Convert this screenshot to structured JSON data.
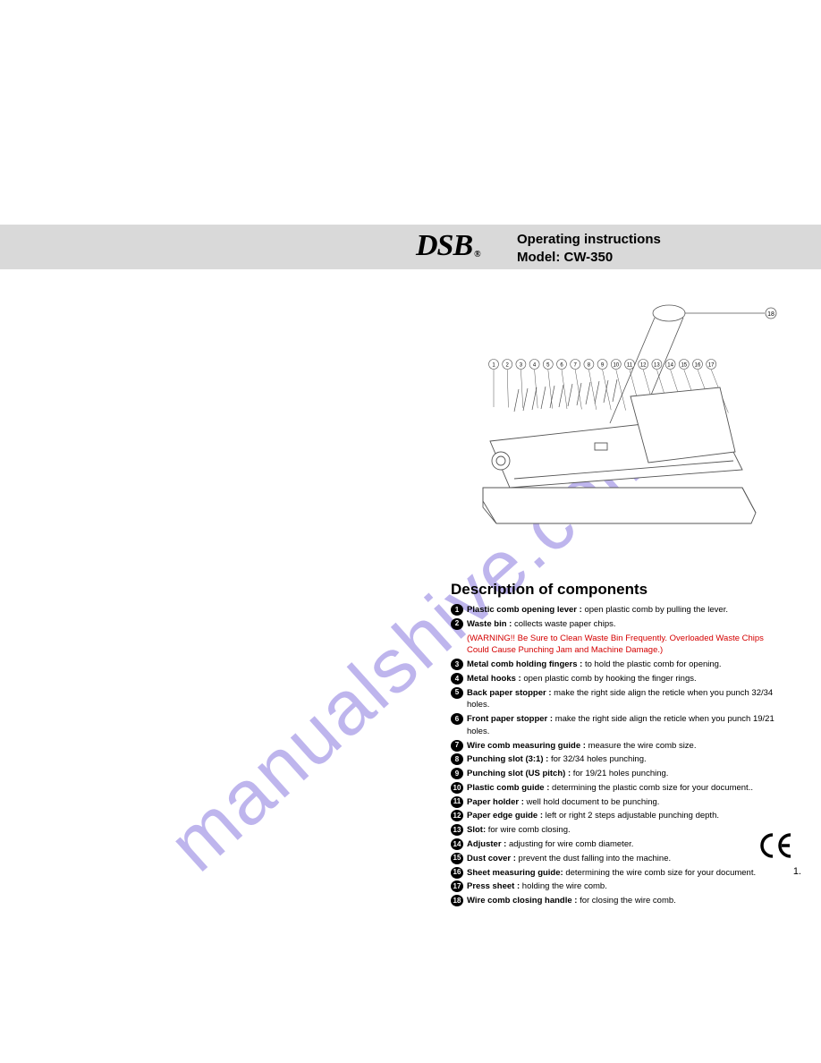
{
  "header": {
    "logo_text": "DSB",
    "line1": "Operating instructions",
    "line2": "Model: CW-350"
  },
  "section_title": "Description of components",
  "watermark": "manualshive.com",
  "ce_mark": "CE",
  "page_number": "1.",
  "warning_text": "(WARNING!! Be Sure to Clean Waste Bin Frequently. Overloaded Waste Chips Could Cause Punching Jam and Machine Damage.)",
  "components": [
    {
      "n": "1",
      "label": "Plastic comb opening lever :",
      "desc": " open plastic comb by pulling the lever."
    },
    {
      "n": "2",
      "label": "Waste bin :",
      "desc": " collects waste paper chips."
    },
    {
      "n": "3",
      "label": "Metal comb holding fingers :",
      "desc": " to hold the plastic comb for opening."
    },
    {
      "n": "4",
      "label": "Metal hooks :",
      "desc": " open plastic comb by hooking the finger rings."
    },
    {
      "n": "5",
      "label": "Back paper stopper :",
      "desc": " make the right side align the reticle when you punch 32/34 holes."
    },
    {
      "n": "6",
      "label": "Front paper stopper :",
      "desc": " make the right side align the reticle when you punch 19/21 holes."
    },
    {
      "n": "7",
      "label": "Wire comb measuring guide :",
      "desc": " measure the wire comb size."
    },
    {
      "n": "8",
      "label": "Punching slot (3:1) :",
      "desc": " for 32/34 holes punching."
    },
    {
      "n": "9",
      "label": "Punching slot (US pitch) :",
      "desc": " for 19/21 holes punching."
    },
    {
      "n": "10",
      "label": "Plastic comb guide :",
      "desc": " determining the plastic comb size for your document.."
    },
    {
      "n": "11",
      "label": "Paper holder :",
      "desc": " well hold document to be punching."
    },
    {
      "n": "12",
      "label": "Paper edge guide :",
      "desc": " left or right 2 steps adjustable punching depth."
    },
    {
      "n": "13",
      "label": "Slot:",
      "desc": " for wire comb closing."
    },
    {
      "n": "14",
      "label": "Adjuster :",
      "desc": " adjusting for wire comb diameter."
    },
    {
      "n": "15",
      "label": "Dust cover :",
      "desc": " prevent the dust falling into the machine."
    },
    {
      "n": "16",
      "label": "Sheet measuring guide:",
      "desc": " determining the wire comb size for your document."
    },
    {
      "n": "17",
      "label": "Press sheet :",
      "desc": " holding the wire comb."
    },
    {
      "n": "18",
      "label": "Wire comb closing handle :",
      "desc": " for closing the wire comb."
    }
  ],
  "diagram": {
    "callouts_top": [
      "1",
      "2",
      "3",
      "4",
      "5",
      "6",
      "7",
      "8",
      "9",
      "10",
      "11",
      "12",
      "13",
      "14",
      "15",
      "16",
      "17"
    ],
    "callout_handle": "18",
    "stroke": "#555555",
    "fill": "#ffffff"
  }
}
